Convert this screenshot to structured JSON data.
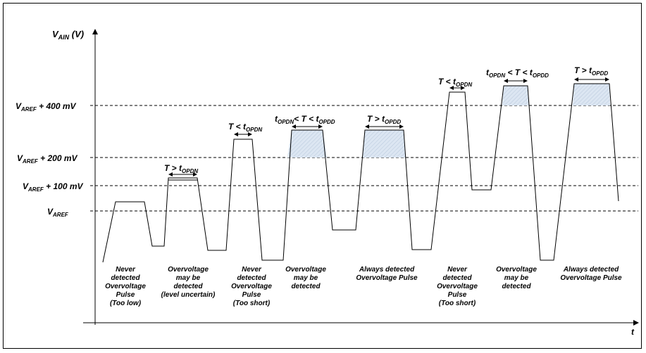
{
  "axes": {
    "y_label": "V",
    "y_sub": "AIN",
    "y_unit": " (V)",
    "x_label": "t"
  },
  "levels": [
    {
      "id": "l400",
      "name": "V",
      "sub": "AREF",
      "suffix": " + 400 mV"
    },
    {
      "id": "l200",
      "name": "V",
      "sub": "AREF",
      "suffix": " + 200 mV"
    },
    {
      "id": "l100",
      "name": "V",
      "sub": "AREF",
      "suffix": " + 100 mV"
    },
    {
      "id": "lref",
      "name": "V",
      "sub": "AREF",
      "suffix": ""
    }
  ],
  "pulse_labels": [
    {
      "id": "p2",
      "parts": [
        [
          "T > t",
          ""
        ],
        [
          "OPDN",
          "sub"
        ]
      ]
    },
    {
      "id": "p3",
      "parts": [
        [
          "T < t",
          ""
        ],
        [
          "OPDN",
          "sub"
        ]
      ]
    },
    {
      "id": "p4",
      "parts": [
        [
          "t",
          ""
        ],
        [
          "OPDN",
          "sub"
        ],
        [
          "< T < t",
          ""
        ],
        [
          "OPDD",
          "sub"
        ]
      ]
    },
    {
      "id": "p5",
      "parts": [
        [
          "T > t",
          ""
        ],
        [
          "OPDD",
          "sub"
        ]
      ]
    },
    {
      "id": "p6",
      "parts": [
        [
          "T < t",
          ""
        ],
        [
          "OPDN",
          "sub"
        ]
      ]
    },
    {
      "id": "p7",
      "parts": [
        [
          "t",
          ""
        ],
        [
          "OPDN",
          "sub"
        ],
        [
          " < T < t",
          ""
        ],
        [
          "OPDD",
          "sub"
        ]
      ]
    },
    {
      "id": "p8",
      "parts": [
        [
          "T > t",
          ""
        ],
        [
          "OPDD",
          "sub"
        ]
      ]
    }
  ],
  "captions": [
    {
      "id": "c1",
      "lines": [
        "Never",
        "detected",
        "Overvoltage",
        "Pulse",
        "(Too low)"
      ]
    },
    {
      "id": "c2",
      "lines": [
        "Overvoltage",
        "may be",
        "detected",
        "(level uncertain)"
      ]
    },
    {
      "id": "c3",
      "lines": [
        "Never",
        "detected",
        "Overvoltage",
        "Pulse",
        "(Too short)"
      ]
    },
    {
      "id": "c4",
      "lines": [
        "Overvoltage",
        "may be",
        "detected"
      ]
    },
    {
      "id": "c5",
      "lines": [
        "Always detected",
        "Overvoltage Pulse"
      ]
    },
    {
      "id": "c6",
      "lines": [
        "Never",
        "detected",
        "Overvoltage",
        "Pulse",
        "(Too short)"
      ]
    },
    {
      "id": "c7",
      "lines": [
        "Overvoltage",
        "may be",
        "detected"
      ]
    },
    {
      "id": "c8",
      "lines": [
        "Always detected",
        "Overvoltage Pulse"
      ]
    }
  ],
  "colors": {
    "fill": "#dce6f2",
    "line": "#000000"
  }
}
